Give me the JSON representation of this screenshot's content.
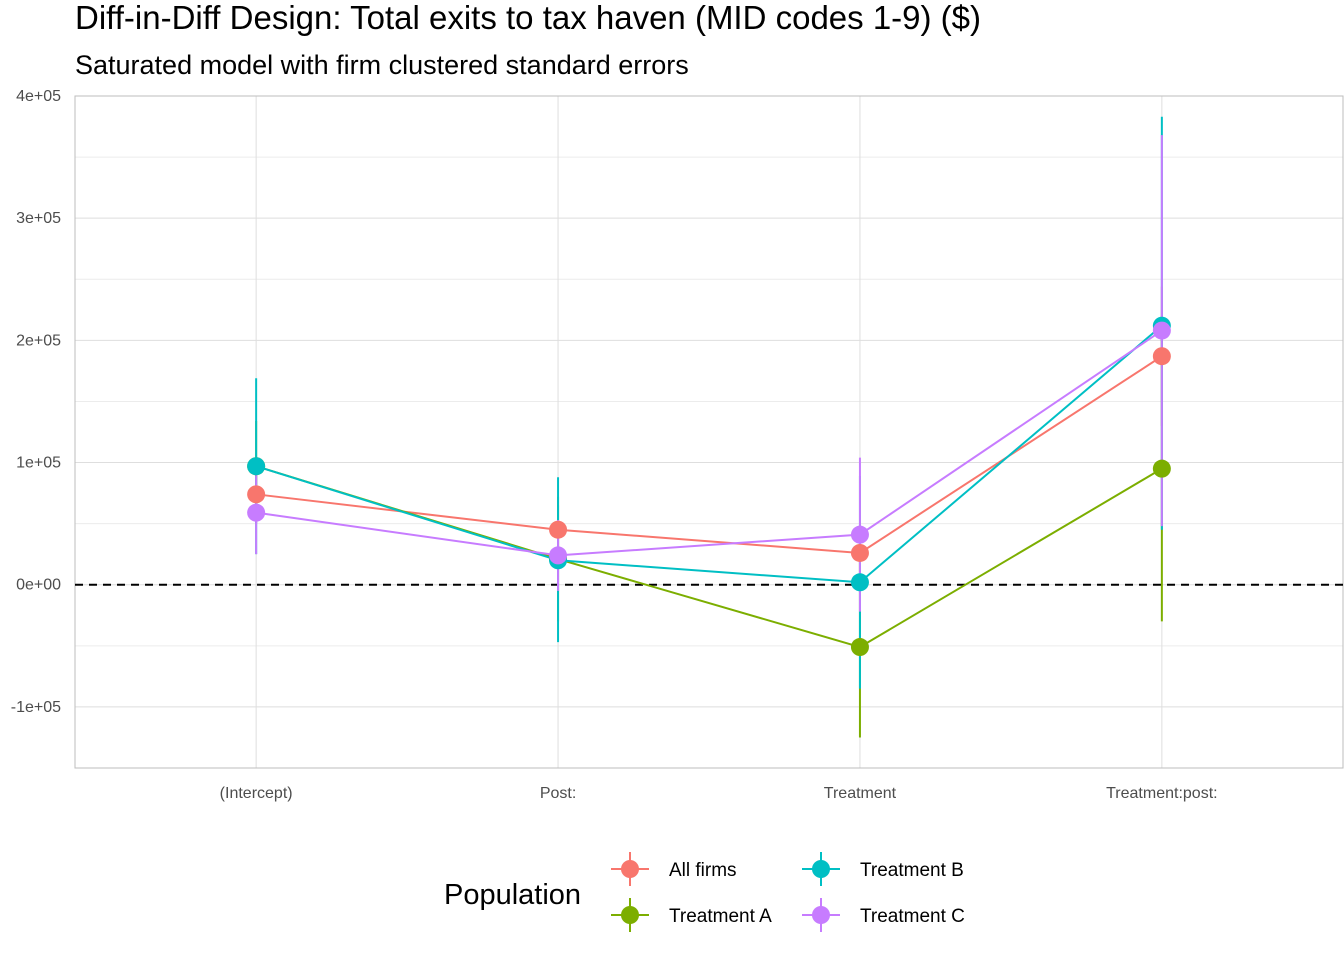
{
  "chart_data": {
    "type": "scatter",
    "title": "Diff-in-Diff Design: Total exits to tax haven (MID codes 1-9)  ($)",
    "subtitle": "Saturated model with firm clustered standard errors",
    "xlabel": "",
    "ylabel": "",
    "categories": [
      "(Intercept)",
      "Post:",
      "Treatment",
      "Treatment:post:"
    ],
    "ylim": [
      -150000,
      400000
    ],
    "yticks": [
      -100000,
      0,
      100000,
      200000,
      300000,
      400000
    ],
    "ytick_labels": [
      "-1e+05",
      "0e+00",
      "1e+05",
      "2e+05",
      "3e+05",
      "4e+05"
    ],
    "grid": true,
    "reference_line": {
      "y": 0,
      "style": "dashed"
    },
    "legend": {
      "title": "Population",
      "position": "bottom"
    },
    "series": [
      {
        "name": "All firms",
        "color": "#F8766D",
        "values": [
          74000,
          45000,
          26000,
          187000
        ],
        "lower": [
          50000,
          25000,
          10000,
          130000
        ],
        "upper": [
          98000,
          65000,
          42000,
          244000
        ]
      },
      {
        "name": "Treatment A",
        "color": "#7CAE00",
        "values": [
          97000,
          21000,
          -51000,
          95000
        ],
        "lower": [
          60000,
          -30000,
          -125000,
          -30000
        ],
        "upper": [
          134000,
          72000,
          23000,
          220000
        ]
      },
      {
        "name": "Treatment B",
        "color": "#00BFC4",
        "values": [
          97000,
          20000,
          2000,
          212000
        ],
        "lower": [
          25000,
          -47000,
          -85000,
          45000
        ],
        "upper": [
          169000,
          88000,
          89000,
          383000
        ]
      },
      {
        "name": "Treatment C",
        "color": "#C77CFF",
        "values": [
          59000,
          24000,
          41000,
          208000
        ],
        "lower": [
          25000,
          -5000,
          -22000,
          48000
        ],
        "upper": [
          93000,
          53000,
          104000,
          368000
        ]
      }
    ]
  }
}
